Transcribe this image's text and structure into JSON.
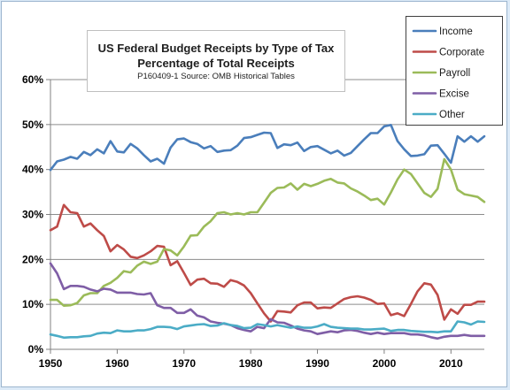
{
  "chart_data": {
    "type": "line",
    "title": "US Federal Budget Receipts by Type of Tax",
    "title_line2": "Percentage of Total Receipts",
    "subtitle": "P160409-1 Source: OMB Historical Tables",
    "xlabel": "",
    "ylabel": "",
    "xlim": [
      1950,
      2015
    ],
    "ylim": [
      0,
      60
    ],
    "x_ticks": [
      1950,
      1960,
      1970,
      1980,
      1990,
      2000,
      2010
    ],
    "y_ticks": [
      0,
      10,
      20,
      30,
      40,
      50,
      60
    ],
    "y_tick_labels": [
      "0%",
      "10%",
      "20%",
      "30%",
      "40%",
      "50%",
      "60%"
    ],
    "grid": "horizontal",
    "legend_position": "top-right",
    "x": [
      1950,
      1951,
      1952,
      1953,
      1954,
      1955,
      1956,
      1957,
      1958,
      1959,
      1960,
      1961,
      1962,
      1963,
      1964,
      1965,
      1966,
      1967,
      1968,
      1969,
      1970,
      1971,
      1972,
      1973,
      1974,
      1975,
      1976,
      1977,
      1978,
      1979,
      1980,
      1981,
      1982,
      1983,
      1984,
      1985,
      1986,
      1987,
      1988,
      1989,
      1990,
      1991,
      1992,
      1993,
      1994,
      1995,
      1996,
      1997,
      1998,
      1999,
      2000,
      2001,
      2002,
      2003,
      2004,
      2005,
      2006,
      2007,
      2008,
      2009,
      2010,
      2011,
      2012,
      2013,
      2014,
      2015
    ],
    "series": [
      {
        "name": "Income",
        "color": "#4a7ebb",
        "values": [
          39.9,
          41.8,
          42.2,
          42.8,
          42.4,
          43.9,
          43.2,
          44.5,
          43.6,
          46.3,
          44.0,
          43.8,
          45.7,
          44.7,
          43.2,
          41.8,
          42.4,
          41.3,
          44.9,
          46.7,
          46.9,
          46.1,
          45.7,
          44.7,
          45.2,
          43.9,
          44.2,
          44.3,
          45.3,
          47.0,
          47.2,
          47.7,
          48.2,
          48.1,
          44.8,
          45.6,
          45.4,
          46.0,
          44.1,
          45.0,
          45.2,
          44.4,
          43.6,
          44.2,
          43.1,
          43.7,
          45.2,
          46.7,
          48.1,
          48.1,
          49.6,
          49.9,
          46.3,
          44.5,
          43.0,
          43.1,
          43.4,
          45.3,
          45.4,
          43.5,
          41.5,
          47.4,
          46.2,
          47.4,
          46.2,
          47.4
        ]
      },
      {
        "name": "Corporate",
        "color": "#be4b48",
        "values": [
          26.5,
          27.3,
          32.1,
          30.5,
          30.3,
          27.3,
          28.0,
          26.5,
          25.2,
          21.8,
          23.2,
          22.2,
          20.6,
          20.3,
          20.9,
          21.8,
          23.0,
          22.8,
          18.7,
          19.6,
          17.0,
          14.3,
          15.5,
          15.7,
          14.7,
          14.6,
          13.9,
          15.4,
          15.0,
          14.2,
          12.5,
          10.2,
          8.0,
          6.2,
          8.5,
          8.4,
          8.2,
          9.8,
          10.4,
          10.4,
          9.1,
          9.3,
          9.2,
          10.2,
          11.2,
          11.6,
          11.8,
          11.5,
          11.0,
          10.1,
          10.2,
          7.6,
          8.0,
          7.4,
          10.1,
          12.9,
          14.7,
          14.4,
          12.1,
          6.6,
          8.9,
          7.9,
          9.9,
          9.9,
          10.6,
          10.6
        ]
      },
      {
        "name": "Payroll",
        "color": "#9bbb59",
        "values": [
          11.0,
          11.0,
          9.7,
          9.8,
          10.3,
          12.0,
          12.5,
          12.5,
          14.1,
          14.8,
          15.9,
          17.4,
          17.1,
          18.6,
          19.5,
          19.0,
          19.5,
          22.3,
          22.0,
          20.9,
          22.9,
          25.3,
          25.4,
          27.3,
          28.5,
          30.3,
          30.5,
          30.0,
          30.3,
          30.0,
          30.5,
          30.5,
          32.6,
          34.8,
          35.9,
          36.0,
          36.9,
          35.5,
          36.8,
          36.3,
          36.8,
          37.5,
          37.9,
          37.1,
          36.9,
          35.8,
          35.1,
          34.2,
          33.2,
          33.5,
          32.2,
          34.9,
          37.8,
          40.0,
          39.0,
          36.9,
          34.8,
          33.9,
          35.7,
          42.3,
          40.0,
          35.5,
          34.5,
          34.2,
          33.9,
          32.8
        ]
      },
      {
        "name": "Excise",
        "color": "#7f5ea6",
        "values": [
          19.1,
          16.9,
          13.4,
          14.1,
          14.1,
          13.9,
          13.3,
          12.9,
          13.5,
          13.3,
          12.6,
          12.6,
          12.6,
          12.3,
          12.2,
          12.5,
          9.8,
          9.2,
          9.2,
          8.1,
          8.1,
          8.9,
          7.5,
          7.1,
          6.2,
          5.9,
          5.7,
          5.4,
          4.7,
          4.3,
          4.0,
          5.0,
          4.7,
          6.7,
          6.0,
          5.9,
          5.3,
          4.6,
          4.2,
          4.0,
          3.4,
          3.7,
          4.0,
          3.8,
          4.2,
          4.3,
          4.1,
          3.7,
          3.4,
          3.7,
          3.4,
          3.6,
          3.6,
          3.6,
          3.3,
          3.3,
          3.1,
          2.7,
          2.4,
          2.8,
          3.0,
          3.0,
          3.2,
          3.0,
          3.0,
          3.0
        ]
      },
      {
        "name": "Other",
        "color": "#4bacc6",
        "values": [
          3.3,
          3.0,
          2.6,
          2.7,
          2.7,
          2.9,
          3.0,
          3.5,
          3.7,
          3.6,
          4.2,
          4.0,
          4.0,
          4.2,
          4.2,
          4.5,
          5.0,
          5.0,
          4.9,
          4.5,
          5.1,
          5.3,
          5.5,
          5.6,
          5.2,
          5.3,
          5.8,
          5.4,
          5.2,
          4.7,
          4.8,
          5.6,
          5.4,
          5.1,
          5.4,
          5.1,
          4.8,
          5.1,
          4.8,
          4.8,
          5.1,
          5.6,
          5.0,
          4.8,
          4.7,
          4.6,
          4.6,
          4.4,
          4.4,
          4.5,
          4.6,
          4.1,
          4.3,
          4.3,
          4.1,
          4.0,
          3.9,
          3.9,
          3.8,
          4.0,
          4.0,
          6.2,
          6.0,
          5.5,
          6.2,
          6.1
        ]
      }
    ]
  }
}
